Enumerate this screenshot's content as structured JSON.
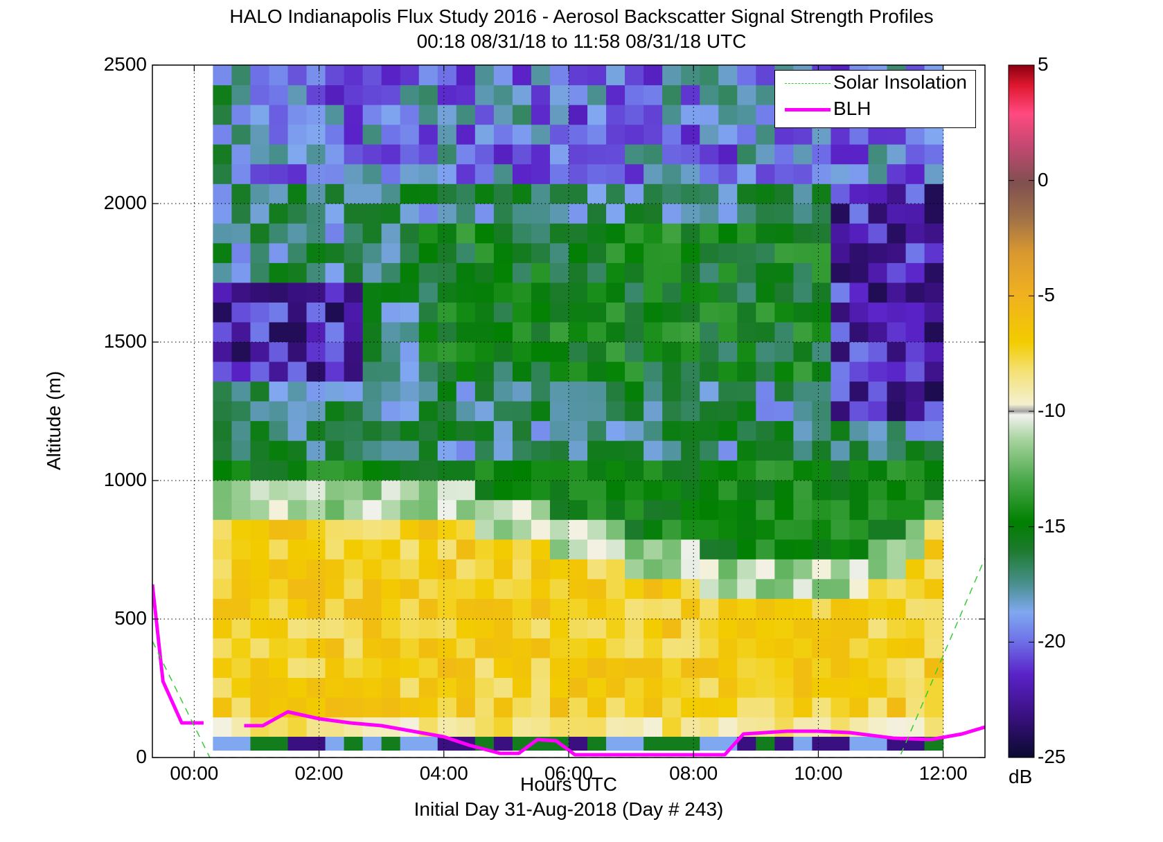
{
  "chart_data": {
    "type": "heatmap",
    "title": "HALO Indianapolis Flux Study 2016 - Aerosol Backscatter Signal Strength Profiles",
    "subtitle": "00:18 08/31/18 to 11:58 08/31/18  UTC",
    "xlabel": "Hours UTC",
    "xlabel_note": "Initial Day 31-Aug-2018 (Day # 243)",
    "ylabel": "Altitude (m)",
    "xlim": [
      -0.67,
      12.67
    ],
    "ylim": [
      0,
      2500
    ],
    "grid": true,
    "x_ticks": [
      0,
      2,
      4,
      6,
      8,
      10,
      12
    ],
    "x_tick_labels": [
      "00:00",
      "02:00",
      "04:00",
      "06:00",
      "08:00",
      "10:00",
      "12:00"
    ],
    "y_ticks": [
      0,
      500,
      1000,
      1500,
      2000,
      2500
    ],
    "y_tick_labels": [
      "0",
      "500",
      "1000",
      "1500",
      "2000",
      "2500"
    ],
    "colorbar": {
      "label": "dB",
      "range": [
        -25,
        5
      ],
      "ticks": [
        5,
        0,
        -5,
        -10,
        -15,
        -20,
        -25
      ],
      "tick_labels": [
        "5",
        "0",
        "-5",
        "-10",
        "-15",
        "-20",
        "-25"
      ]
    },
    "legend": {
      "placement": "top-right",
      "entries": [
        "Solar Insolation",
        "BLH"
      ]
    },
    "heatmap_grid": {
      "x_start": 0.3,
      "x_end": 12.0,
      "columns": 39,
      "y_start": 75,
      "y_end": 2500,
      "rows": 34
    },
    "series": [
      {
        "name": "BLH",
        "color": "#ff00ff",
        "x": [
          -0.67,
          -0.5,
          -0.2,
          0.15,
          0.5,
          0.8,
          1.1,
          1.5,
          2.0,
          2.5,
          3.0,
          3.5,
          4.0,
          4.4,
          4.9,
          5.2,
          5.5,
          5.8,
          6.1,
          6.5,
          7.0,
          7.5,
          8.0,
          8.5,
          8.8,
          9.5,
          10.0,
          10.5,
          11.2,
          11.8,
          12.3,
          12.67
        ],
        "y": [
          625,
          275,
          125,
          125,
          null,
          115,
          115,
          165,
          140,
          125,
          115,
          95,
          75,
          45,
          15,
          15,
          65,
          60,
          10,
          10,
          10,
          10,
          10,
          10,
          85,
          95,
          95,
          90,
          70,
          65,
          85,
          110
        ]
      },
      {
        "name": "Solar Insolation",
        "color": "#33cc33",
        "x": [
          -0.67,
          0.25,
          11.3,
          12.67
        ],
        "y": [
          420,
          0,
          0,
          720
        ]
      }
    ],
    "heatmap_description_points": [
      {
        "x": 1.0,
        "y": 1500,
        "value": -23
      },
      {
        "x": 2.5,
        "y": 400,
        "value": -7
      },
      {
        "x": 7.0,
        "y": 1600,
        "value": -16
      },
      {
        "x": 9.5,
        "y": 700,
        "value": -12
      },
      {
        "x": 11.8,
        "y": 1700,
        "value": -22
      },
      {
        "x": 6.0,
        "y": 2200,
        "value": -17
      },
      {
        "x": 2.0,
        "y": 100,
        "value": -9
      }
    ]
  }
}
